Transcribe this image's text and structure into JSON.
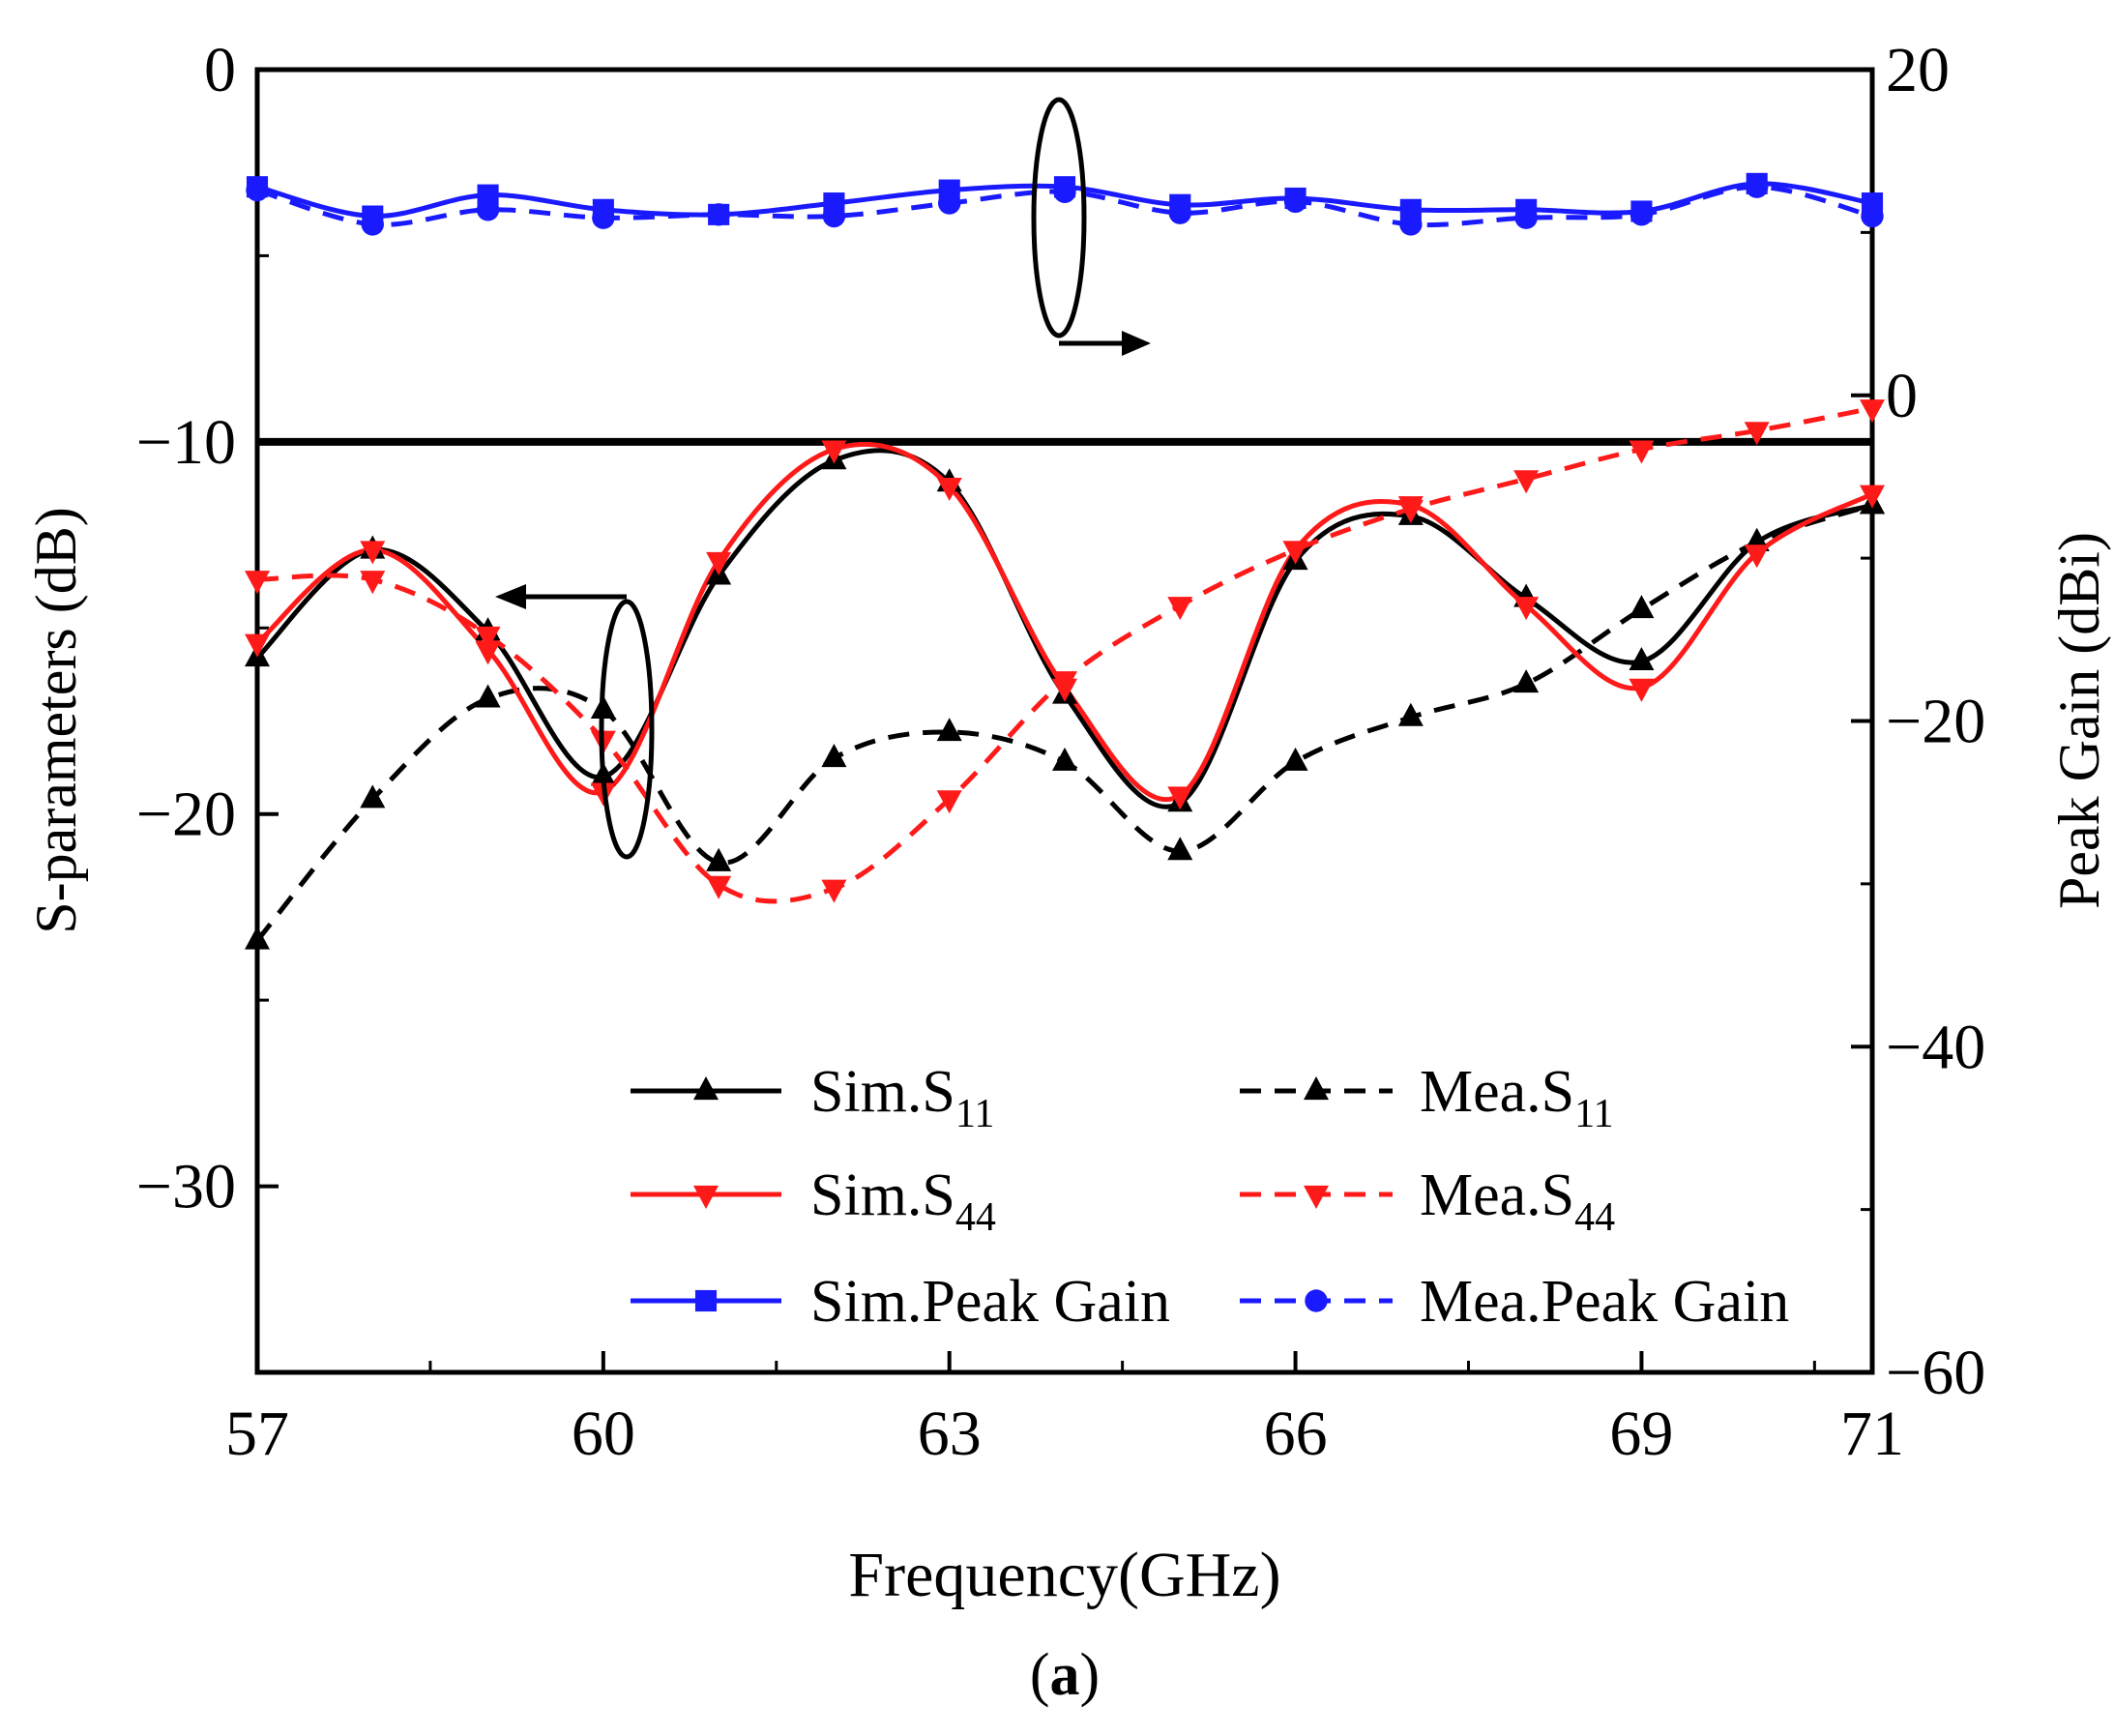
{
  "chart_data": {
    "type": "line",
    "xlabel": "Frequency(GHz)",
    "ylabel_left": "S-parameters (dB)",
    "ylabel_right": "Peak Gain (dBi)",
    "panel_label": {
      "open": "(",
      "letter": "a",
      "close": ")"
    },
    "xlim": [
      57,
      71
    ],
    "ylim_left": [
      -35,
      0
    ],
    "ylim_right": [
      -60,
      20
    ],
    "x_ticks": [
      57,
      60,
      63,
      66,
      69,
      71
    ],
    "y_left_ticks": [
      0,
      -10,
      -20,
      -30
    ],
    "y_left_tick_labels": [
      "0",
      "−10",
      "−20",
      "−30"
    ],
    "y_right_ticks": [
      20,
      0,
      -20,
      -40,
      -60
    ],
    "y_right_tick_labels": [
      "20",
      "0",
      "−20",
      "−40",
      "−60"
    ],
    "break_line_left_value": -10,
    "grid": false,
    "legend_position": "bottom-right",
    "colors": {
      "black": "#000000",
      "red": "#ff1a1a",
      "blue": "#1a1aff"
    },
    "series": [
      {
        "name": "Sim.S",
        "subscript": "11",
        "axis": "left",
        "color": "#000000",
        "dash": false,
        "marker": "triangle-up",
        "x": [
          57,
          58,
          59,
          60,
          61,
          62,
          63,
          64,
          65,
          66,
          67,
          68,
          69,
          70,
          71
        ],
        "y": [
          -15.8,
          -12.9,
          -15.1,
          -19.0,
          -13.6,
          -10.5,
          -11.1,
          -16.8,
          -19.7,
          -13.2,
          -12.0,
          -14.2,
          -15.9,
          -12.7,
          -11.7
        ]
      },
      {
        "name": "Mea.S",
        "subscript": "11",
        "axis": "left",
        "color": "#000000",
        "dash": true,
        "marker": "triangle-up",
        "x": [
          57,
          58,
          59,
          60,
          61,
          62,
          63,
          64,
          65,
          66,
          67,
          68,
          69,
          70,
          71
        ],
        "y": [
          -23.4,
          -19.6,
          -16.9,
          -17.2,
          -21.3,
          -18.5,
          -17.8,
          -18.6,
          -21.0,
          -18.6,
          -17.4,
          -16.5,
          -14.5,
          -12.7,
          -11.7
        ]
      },
      {
        "name": "Sim.S",
        "subscript": "44",
        "axis": "left",
        "color": "#ff1a1a",
        "dash": false,
        "marker": "triangle-down",
        "x": [
          57,
          58,
          59,
          60,
          61,
          62,
          63,
          64,
          65,
          66,
          67,
          68,
          69,
          70,
          71
        ],
        "y": [
          -15.4,
          -12.9,
          -15.6,
          -19.4,
          -13.2,
          -10.2,
          -11.2,
          -16.6,
          -19.5,
          -12.9,
          -11.7,
          -14.4,
          -16.6,
          -13.0,
          -11.4
        ]
      },
      {
        "name": "Mea.S",
        "subscript": "44",
        "axis": "left",
        "color": "#ff1a1a",
        "dash": true,
        "marker": "triangle-down",
        "x": [
          57,
          58,
          59,
          60,
          61,
          62,
          63,
          64,
          65,
          66,
          67,
          68,
          69,
          70,
          71
        ],
        "y": [
          -13.7,
          -13.7,
          -15.2,
          -18.0,
          -21.9,
          -22.0,
          -19.6,
          -16.4,
          -14.4,
          -12.9,
          -11.8,
          -11.0,
          -10.2,
          -9.7,
          -9.1
        ]
      },
      {
        "name": "Sim.Peak Gain",
        "axis": "right",
        "color": "#1a1aff",
        "dash": false,
        "marker": "square",
        "x": [
          57,
          58,
          59,
          60,
          61,
          62,
          63,
          64,
          65,
          66,
          67,
          68,
          69,
          70,
          71
        ],
        "y": [
          12.8,
          11.0,
          12.3,
          11.4,
          11.1,
          11.8,
          12.6,
          12.8,
          11.7,
          12.1,
          11.4,
          11.4,
          11.3,
          13.0,
          11.8
        ]
      },
      {
        "name": "Mea.Peak Gain",
        "axis": "right",
        "color": "#1a1aff",
        "dash": true,
        "marker": "circle",
        "x": [
          57,
          58,
          59,
          60,
          61,
          62,
          63,
          64,
          65,
          66,
          67,
          68,
          69,
          70,
          71
        ],
        "y": [
          12.6,
          10.5,
          11.4,
          10.9,
          11.1,
          11.0,
          11.8,
          12.5,
          11.2,
          11.9,
          10.5,
          10.9,
          11.1,
          12.8,
          11.0
        ]
      }
    ]
  }
}
